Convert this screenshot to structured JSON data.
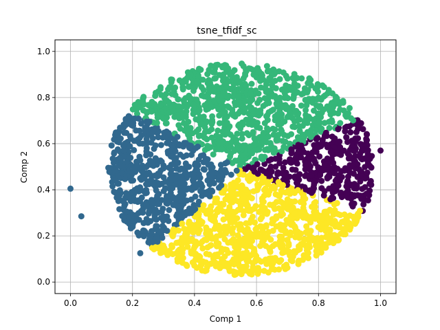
{
  "chart_data": {
    "type": "scatter",
    "title": "tsne_tfidf_sc",
    "xlabel": "Comp  1",
    "ylabel": "Comp  2",
    "xlim": [
      -0.05,
      1.05
    ],
    "ylim": [
      -0.05,
      1.05
    ],
    "xticks": [
      "0.0",
      "0.2",
      "0.4",
      "0.6",
      "0.8",
      "1.0"
    ],
    "yticks": [
      "0.0",
      "0.2",
      "0.4",
      "0.6",
      "0.8",
      "1.0"
    ],
    "xtick_values": [
      0.0,
      0.2,
      0.4,
      0.6,
      0.8,
      1.0
    ],
    "ytick_values": [
      0.0,
      0.2,
      0.4,
      0.6,
      0.8,
      1.0
    ],
    "grid": true,
    "series": [
      {
        "color": "#440154",
        "center": [
          0.78,
          0.52
        ],
        "region": "right"
      },
      {
        "color": "#31688e",
        "center": [
          0.25,
          0.47
        ],
        "region": "left"
      },
      {
        "color": "#35b779",
        "center": [
          0.53,
          0.81
        ],
        "region": "top"
      },
      {
        "color": "#fde725",
        "center": [
          0.55,
          0.24
        ],
        "region": "bottom"
      }
    ],
    "outliers": [
      {
        "x": 0.0,
        "y": 0.405,
        "color": "#31688e"
      },
      {
        "x": 0.035,
        "y": 0.285,
        "color": "#31688e"
      },
      {
        "x": 1.0,
        "y": 0.57,
        "color": "#440154"
      },
      {
        "x": 0.86,
        "y": 0.18,
        "color": "#fde725"
      },
      {
        "x": 0.225,
        "y": 0.125,
        "color": "#31688e"
      }
    ]
  }
}
